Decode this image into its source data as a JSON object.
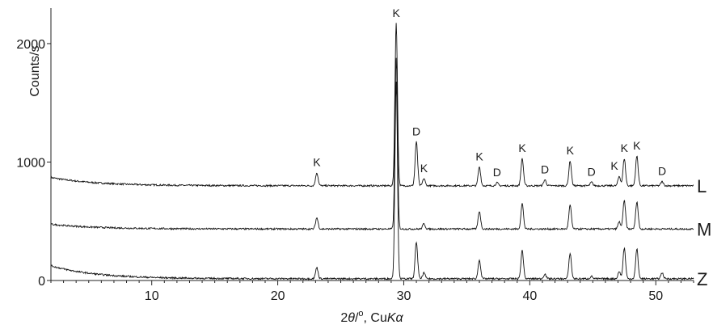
{
  "chart_data": {
    "type": "line",
    "title": "",
    "xlabel_parts": [
      "2",
      "θ",
      "/",
      "o",
      ", Cu",
      "K",
      "α"
    ],
    "ylabel": "Counts/s",
    "xlim": [
      2,
      53
    ],
    "ylim": [
      0,
      2300
    ],
    "x_ticks": [
      10,
      20,
      30,
      40,
      50
    ],
    "y_ticks": [
      0,
      1000,
      2000
    ],
    "grid": false,
    "legend": "none",
    "color": "#111111",
    "series": [
      {
        "name": "L",
        "baseline": 800,
        "low_angle_rise": 70,
        "peaks": [
          {
            "x": 23.1,
            "height": 110,
            "label": "K"
          },
          {
            "x": 29.4,
            "height": 1370,
            "label": "K"
          },
          {
            "x": 31.0,
            "height": 370,
            "label": "D"
          },
          {
            "x": 31.6,
            "height": 60,
            "label": "K"
          },
          {
            "x": 36.0,
            "height": 160,
            "label": "K"
          },
          {
            "x": 37.4,
            "height": 25,
            "label": "D"
          },
          {
            "x": 39.4,
            "height": 230,
            "label": "K"
          },
          {
            "x": 41.2,
            "height": 50,
            "label": "D"
          },
          {
            "x": 43.2,
            "height": 210,
            "label": "K"
          },
          {
            "x": 44.9,
            "height": 30,
            "label": "D"
          },
          {
            "x": 47.1,
            "height": 80,
            "label": "K"
          },
          {
            "x": 47.5,
            "height": 230,
            "label": "K"
          },
          {
            "x": 48.5,
            "height": 250,
            "label": "K"
          },
          {
            "x": 50.5,
            "height": 35,
            "label": "D"
          }
        ]
      },
      {
        "name": "M",
        "baseline": 435,
        "low_angle_rise": 40,
        "peaks": [
          {
            "x": 23.1,
            "height": 95
          },
          {
            "x": 29.4,
            "height": 1450
          },
          {
            "x": 31.6,
            "height": 45
          },
          {
            "x": 36.0,
            "height": 150
          },
          {
            "x": 39.4,
            "height": 215
          },
          {
            "x": 43.2,
            "height": 200
          },
          {
            "x": 47.1,
            "height": 60
          },
          {
            "x": 47.5,
            "height": 240
          },
          {
            "x": 48.5,
            "height": 230
          }
        ]
      },
      {
        "name": "Z",
        "baseline": 15,
        "low_angle_rise": 110,
        "peaks": [
          {
            "x": 23.1,
            "height": 95
          },
          {
            "x": 29.4,
            "height": 1670
          },
          {
            "x": 31.0,
            "height": 310
          },
          {
            "x": 31.6,
            "height": 50
          },
          {
            "x": 36.0,
            "height": 160
          },
          {
            "x": 39.4,
            "height": 240
          },
          {
            "x": 41.2,
            "height": 40
          },
          {
            "x": 43.2,
            "height": 215
          },
          {
            "x": 44.9,
            "height": 20
          },
          {
            "x": 47.1,
            "height": 60
          },
          {
            "x": 47.5,
            "height": 260
          },
          {
            "x": 48.5,
            "height": 250
          },
          {
            "x": 50.5,
            "height": 50
          }
        ]
      }
    ]
  }
}
